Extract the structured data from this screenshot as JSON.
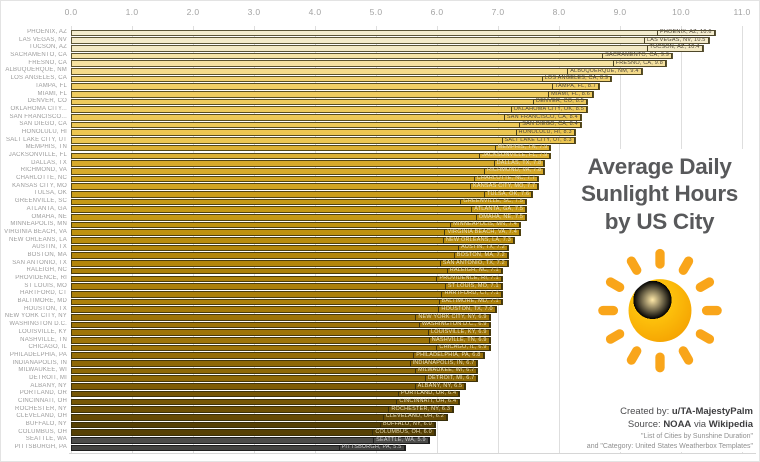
{
  "chart_data": {
    "type": "bar",
    "orientation": "horizontal",
    "title": "Average Daily Sunlight Hours by US City",
    "xlabel": "",
    "ylabel": "",
    "xlim": [
      0.0,
      11.0
    ],
    "grid": "vertical",
    "legend": "none",
    "x_ticks": [
      "0.0",
      "1.0",
      "2.0",
      "3.0",
      "4.0",
      "5.0",
      "6.0",
      "7.0",
      "8.0",
      "9.0",
      "10.0",
      "11.0"
    ],
    "value_unit": "hours",
    "cities": [
      {
        "axis": "PHOENIX, AZ",
        "label": "PHOENIX, AZ",
        "value": 10.6,
        "color": "#f3ecce",
        "text": "dark"
      },
      {
        "axis": "LAS VEGAS, NV",
        "label": "LAS VEGAS, NV",
        "value": 10.5,
        "color": "#f3eac9",
        "text": "dark"
      },
      {
        "axis": "TUCSON, AZ",
        "label": "TUCSON, AZ",
        "value": 10.4,
        "color": "#f3e9c4",
        "text": "dark"
      },
      {
        "axis": "SACRAMENTO, CA",
        "label": "SACRAMENTO, CA",
        "value": 9.9,
        "color": "#f5e3a6",
        "text": "dark"
      },
      {
        "axis": "FRESNO, CA",
        "label": "FRESNO, CA",
        "value": 9.8,
        "color": "#f5e2a1",
        "text": "dark"
      },
      {
        "axis": "ALBUQUERQUE, NM",
        "label": "ALBUQUERQUE, NM",
        "value": 9.4,
        "color": "#f4da8a",
        "text": "dark"
      },
      {
        "axis": "LOS ANGELES, CA",
        "label": "LOS ANGELES, CA",
        "value": 8.9,
        "color": "#f2d272",
        "text": "dark"
      },
      {
        "axis": "TAMPA, FL",
        "label": "TAMPA, FL",
        "value": 8.7,
        "color": "#f0ce66",
        "text": "dark"
      },
      {
        "axis": "MIAMI, FL",
        "label": "MIAMI, FL",
        "value": 8.6,
        "color": "#efcc61",
        "text": "dark"
      },
      {
        "axis": "DENVER, CO",
        "label": "DENVER, CO",
        "value": 8.5,
        "color": "#eeca5d",
        "text": "dark"
      },
      {
        "axis": "OKLAHOMA CITY...",
        "label": "OKLAHOMA CITY, OK",
        "value": 8.5,
        "color": "#eeca5d",
        "text": "dark"
      },
      {
        "axis": "SAN FRANCISCO...",
        "label": "SAN FRANCISCO, CA",
        "value": 8.4,
        "color": "#edc857",
        "text": "dark"
      },
      {
        "axis": "SAN DIEGO, CA",
        "label": "SAN DIEGO, CA",
        "value": 8.4,
        "color": "#edc857",
        "text": "dark"
      },
      {
        "axis": "HONOLULU, HI",
        "label": "HONOLULU, HI",
        "value": 8.3,
        "color": "#ecc652",
        "text": "dark"
      },
      {
        "axis": "SALT LAKE CITY, UT",
        "label": "SALT LAKE CITY, UT",
        "value": 8.3,
        "color": "#ecc652",
        "text": "dark"
      },
      {
        "axis": "MEMPHIS, TN",
        "label": "MEMPHIS, TN",
        "value": 7.9,
        "color": "#dcb034",
        "text": "light"
      },
      {
        "axis": "JACKSONVILLE, FL",
        "label": "JACKSONVILLE, FL",
        "value": 7.9,
        "color": "#dcb034",
        "text": "light"
      },
      {
        "axis": "DALLAS, TX",
        "label": "DALLAS, TX",
        "value": 7.8,
        "color": "#d7aa2b",
        "text": "light"
      },
      {
        "axis": "RICHMOND, VA",
        "label": "RICHMOND, VA",
        "value": 7.8,
        "color": "#d7aa2b",
        "text": "light"
      },
      {
        "axis": "CHARLOTTE, NC",
        "label": "CHARLOTTE, NC",
        "value": 7.7,
        "color": "#d1a423",
        "text": "light"
      },
      {
        "axis": "KANSAS CITY, MO",
        "label": "KANSAS CITY, MO",
        "value": 7.7,
        "color": "#d1a423",
        "text": "light"
      },
      {
        "axis": "TULSA, OK",
        "label": "TULSA, OK",
        "value": 7.6,
        "color": "#cb9e1b",
        "text": "light"
      },
      {
        "axis": "GREENVILLE, SC",
        "label": "GREENVILLE, SC",
        "value": 7.5,
        "color": "#c59815",
        "text": "light"
      },
      {
        "axis": "ATLANTA, GA",
        "label": "ATLANTA, GA",
        "value": 7.5,
        "color": "#c59815",
        "text": "light"
      },
      {
        "axis": "OMAHA, NE",
        "label": "OMAHA, NE",
        "value": 7.5,
        "color": "#c59815",
        "text": "light"
      },
      {
        "axis": "MINNEAPOLIS, MN",
        "label": "MINNEAPOLIS, MN",
        "value": 7.4,
        "color": "#bf9210",
        "text": "light"
      },
      {
        "axis": "VIRGINIA BEACH, VA",
        "label": "VIRGINIA BEACH, VA",
        "value": 7.4,
        "color": "#bf9210",
        "text": "light"
      },
      {
        "axis": "NEW ORLEANS, LA",
        "label": "NEW ORLEANS, LA",
        "value": 7.3,
        "color": "#b98c0d",
        "text": "light"
      },
      {
        "axis": "AUSTIN, TX",
        "label": "AUSTIN, TX",
        "value": 7.2,
        "color": "#b3860b",
        "text": "light"
      },
      {
        "axis": "BOSTON, MA",
        "label": "BOSTON, MA",
        "value": 7.2,
        "color": "#b3860b",
        "text": "light"
      },
      {
        "axis": "SAN ANTONIO, TX",
        "label": "SAN ANTONIO, TX",
        "value": 7.2,
        "color": "#b3860b",
        "text": "light"
      },
      {
        "axis": "RALEIGH, NC",
        "label": "RALEIGH, NC",
        "value": 7.1,
        "color": "#ac800a",
        "text": "light"
      },
      {
        "axis": "PROVIDENCE, RI",
        "label": "PROVIDENCE, RI",
        "value": 7.1,
        "color": "#ac800a",
        "text": "light"
      },
      {
        "axis": "ST LOUIS, MO",
        "label": "ST LOUIS, MO",
        "value": 7.1,
        "color": "#ac800a",
        "text": "light"
      },
      {
        "axis": "HARTFORD, CT",
        "label": "HARTFORD, CT",
        "value": 7.1,
        "color": "#ac800a",
        "text": "light"
      },
      {
        "axis": "BALTIMORE, MD",
        "label": "BALTIMORE, MD",
        "value": 7.1,
        "color": "#ac800a",
        "text": "light"
      },
      {
        "axis": "HOUSTON, TX",
        "label": "HOUSTON, TX",
        "value": 7.0,
        "color": "#a57a09",
        "text": "light"
      },
      {
        "axis": "NEW YORK CITY, NY",
        "label": "NEW YORK CITY, NY",
        "value": 6.9,
        "color": "#9e7408",
        "text": "light"
      },
      {
        "axis": "WASHINGTON D.C.",
        "label": "WASHINGTON D.C.",
        "value": 6.9,
        "color": "#9e7408",
        "text": "light"
      },
      {
        "axis": "LOUISVILLE, KY",
        "label": "LOUISVILLE, KY",
        "value": 6.9,
        "color": "#9e7408",
        "text": "light"
      },
      {
        "axis": "NASHVILLE, TN",
        "label": "NASHVILLE, TN",
        "value": 6.9,
        "color": "#9e7408",
        "text": "light"
      },
      {
        "axis": "CHICAGO, IL",
        "label": "CHICAGO, IL",
        "value": 6.9,
        "color": "#9e7408",
        "text": "light"
      },
      {
        "axis": "PHILADELPHIA, PA",
        "label": "PHILADELPHIA, PA",
        "value": 6.8,
        "color": "#966e07",
        "text": "light"
      },
      {
        "axis": "INDIANAPOLIS, IN",
        "label": "INDIANAPOLIS, IN",
        "value": 6.7,
        "color": "#8e6806",
        "text": "light"
      },
      {
        "axis": "MILWAUKEE, WI",
        "label": "MILWAUKEE, WI",
        "value": 6.7,
        "color": "#8e6806",
        "text": "light"
      },
      {
        "axis": "DETROIT, MI",
        "label": "DETROIT, MI",
        "value": 6.7,
        "color": "#8e6806",
        "text": "light"
      },
      {
        "axis": "ALBANY, NY",
        "label": "ALBANY, NY",
        "value": 6.5,
        "color": "#7e5c05",
        "text": "light"
      },
      {
        "axis": "PORTLAND, OR",
        "label": "PORTLAND, OR",
        "value": 6.4,
        "color": "#765605",
        "text": "light"
      },
      {
        "axis": "CINCINNATI, OH",
        "label": "CINCINNATI, OH",
        "value": 6.4,
        "color": "#765605",
        "text": "light"
      },
      {
        "axis": "ROCHESTER, NY",
        "label": "ROCHESTER, NY",
        "value": 6.3,
        "color": "#6e5004",
        "text": "light"
      },
      {
        "axis": "CLEVELAND, OH",
        "label": "CLEVELAND, OH",
        "value": 6.2,
        "color": "#664a04",
        "text": "light"
      },
      {
        "axis": "BUFFALO, NY",
        "label": "BUFFALO, NY",
        "value": 6.0,
        "color": "#564004",
        "text": "light"
      },
      {
        "axis": "COLUMBUS, OH",
        "label": "COLUMBUS, OH",
        "value": 6.0,
        "color": "#564004",
        "text": "light"
      },
      {
        "axis": "SEATTLE, WA",
        "label": "SEATTLE, WA",
        "value": 5.9,
        "color": "#4c4c4a",
        "text": "gray"
      },
      {
        "axis": "PITTSBURGH, PA",
        "label": "PITTSBURGH, PA",
        "value": 5.5,
        "color": "#434341",
        "text": "gray"
      }
    ]
  },
  "title": {
    "line1": "Average Daily",
    "line2": "Sunlight Hours",
    "line3": "by US City"
  },
  "credits": {
    "created_label": "Created by:",
    "created_value": "u/TA-MajestyPalm",
    "source_label": "Source:",
    "source_value1": "NOAA",
    "source_via": "via",
    "source_value2": "Wikipedia",
    "note1": "\"List of Cities by Sunshine Duration\"",
    "note2": "and \"Category: United States Weatherbox Templates\""
  },
  "colors": {
    "sun_main": "#f9a51a",
    "sun_highlight": "#ffde7a",
    "gridline": "#dedede",
    "axis_text": "#a3a3a3",
    "city_text": "#9b9b9b",
    "title_text": "#58595b"
  }
}
